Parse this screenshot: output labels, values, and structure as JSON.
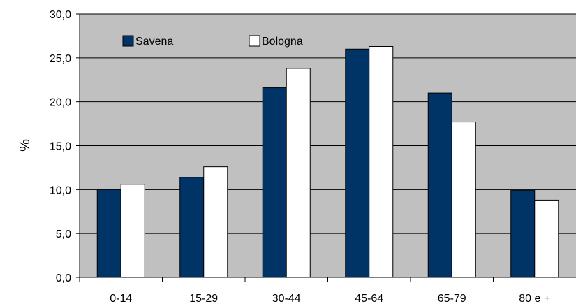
{
  "chart_data": {
    "type": "bar",
    "categories": [
      "0-14",
      "15-29",
      "30-44",
      "45-64",
      "65-79",
      "80 e +"
    ],
    "series": [
      {
        "name": "Savena",
        "values": [
          10.0,
          11.4,
          21.6,
          26.0,
          21.0,
          9.9
        ]
      },
      {
        "name": "Bologna",
        "values": [
          10.6,
          12.6,
          23.8,
          26.3,
          17.7,
          8.8
        ]
      }
    ],
    "title": "",
    "xlabel": "",
    "ylabel": "%",
    "ylim": [
      0,
      30
    ],
    "yticks": [
      "0,0",
      "5,0",
      "10,0",
      "15,0",
      "20,0",
      "25,0",
      "30,0"
    ],
    "grid": true,
    "legend_position": "top-left",
    "colors": {
      "plot_background": "#c0c0c0",
      "series": [
        "#003366",
        "#ffffff"
      ],
      "gridline": "#000000",
      "bar_stroke": "#000000"
    }
  }
}
